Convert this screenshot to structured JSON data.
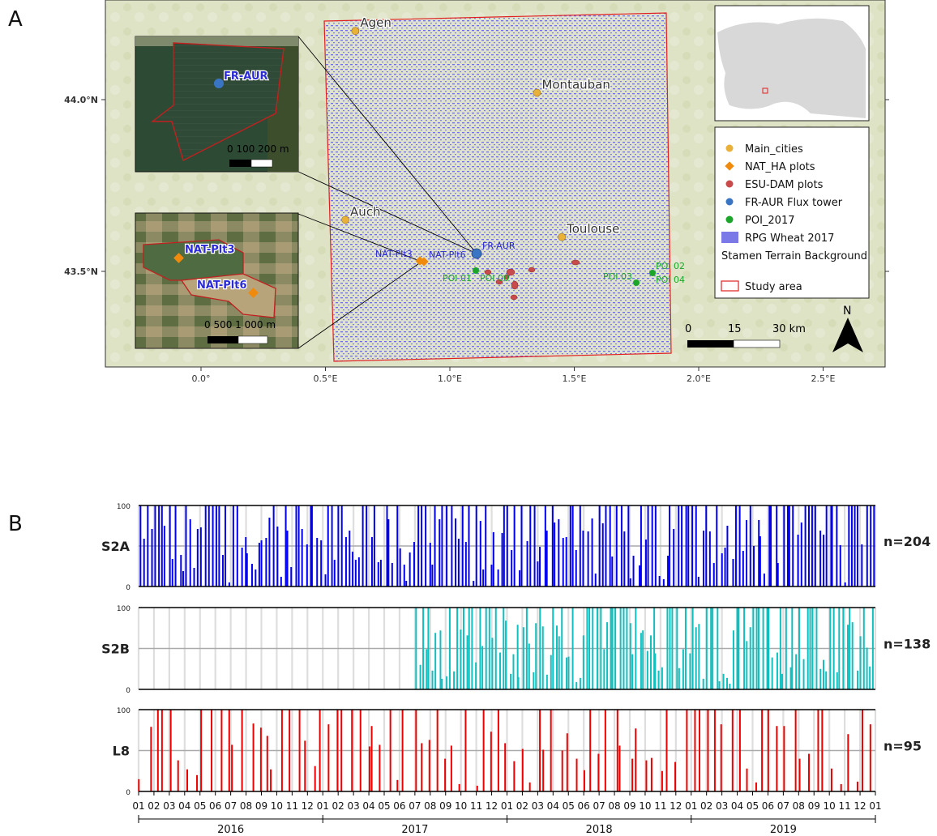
{
  "panel_a": {
    "letter": "A",
    "lon_ticks": [
      "0.0°",
      "0.5°E",
      "1.0°E",
      "1.5°E",
      "2.0°E",
      "2.5°E"
    ],
    "lat_ticks": [
      "44.0°N",
      "43.5°N"
    ],
    "cities": [
      {
        "name": "Agen",
        "lon": 0.62,
        "lat": 44.2
      },
      {
        "name": "Montauban",
        "lon": 1.35,
        "lat": 44.02
      },
      {
        "name": "Auch",
        "lon": 0.58,
        "lat": 43.65
      },
      {
        "name": "Toulouse",
        "lon": 1.45,
        "lat": 43.6
      }
    ],
    "flux_tower_label": "FR-AUR",
    "nat_labels": [
      "NAT-Plt3",
      "NAT-Plt6"
    ],
    "poi_labels": [
      "POI 01",
      "POI 00",
      "POI 03",
      "POI 02",
      "POI 04"
    ],
    "inset_top": {
      "label": "FR-AUR",
      "scale": "0    100 200 m"
    },
    "inset_bottom": {
      "labels": [
        "NAT-Plt3",
        "NAT-Plt6"
      ],
      "scale": "0    500   1 000 m"
    },
    "legend": [
      {
        "label": "Main_cities",
        "symbol": "circle",
        "color": "#E9B03A"
      },
      {
        "label": "NAT_HA plots",
        "symbol": "diamond",
        "color": "#F08A0C"
      },
      {
        "label": "ESU-DAM plots",
        "symbol": "circle",
        "color": "#C84A4A"
      },
      {
        "label": "FR-AUR Flux tower",
        "symbol": "circle",
        "color": "#3A75C4"
      },
      {
        "label": "POI_2017",
        "symbol": "circle",
        "color": "#1BA52A"
      },
      {
        "label": "RPG Wheat 2017",
        "symbol": "rect",
        "color": "#7B78E8"
      },
      {
        "label": "Stamen Terrain Background",
        "symbol": "none",
        "color": ""
      },
      {
        "label": "Study area",
        "symbol": "outline",
        "color": "#E02020"
      }
    ],
    "scalebar": {
      "labels": [
        "0",
        "15",
        "30 km"
      ]
    },
    "north": "N"
  },
  "panel_b": {
    "letter": "B",
    "chart_data": {
      "type": "bar",
      "ylim": [
        0,
        100
      ],
      "yticks": [
        "0",
        "100"
      ],
      "x_month_labels": [
        "01",
        "02",
        "03",
        "04",
        "05",
        "06",
        "07",
        "08",
        "09",
        "10",
        "11",
        "12",
        "01",
        "02",
        "03",
        "04",
        "05",
        "06",
        "07",
        "08",
        "09",
        "10",
        "11",
        "12",
        "01",
        "02",
        "03",
        "04",
        "05",
        "06",
        "07",
        "08",
        "09",
        "10",
        "11",
        "12",
        "01",
        "02",
        "03",
        "04",
        "05",
        "06",
        "07",
        "08",
        "09",
        "10",
        "11",
        "12",
        "01"
      ],
      "years": [
        "2016",
        "2017",
        "2018",
        "2019"
      ],
      "series": [
        {
          "name": "S2A",
          "count_label": "n=204",
          "color": "#0000EE"
        },
        {
          "name": "S2B",
          "count_label": "n=138",
          "color": "#11BFBF"
        },
        {
          "name": "L8",
          "count_label": "n=95",
          "color": "#EE0000"
        }
      ]
    }
  }
}
